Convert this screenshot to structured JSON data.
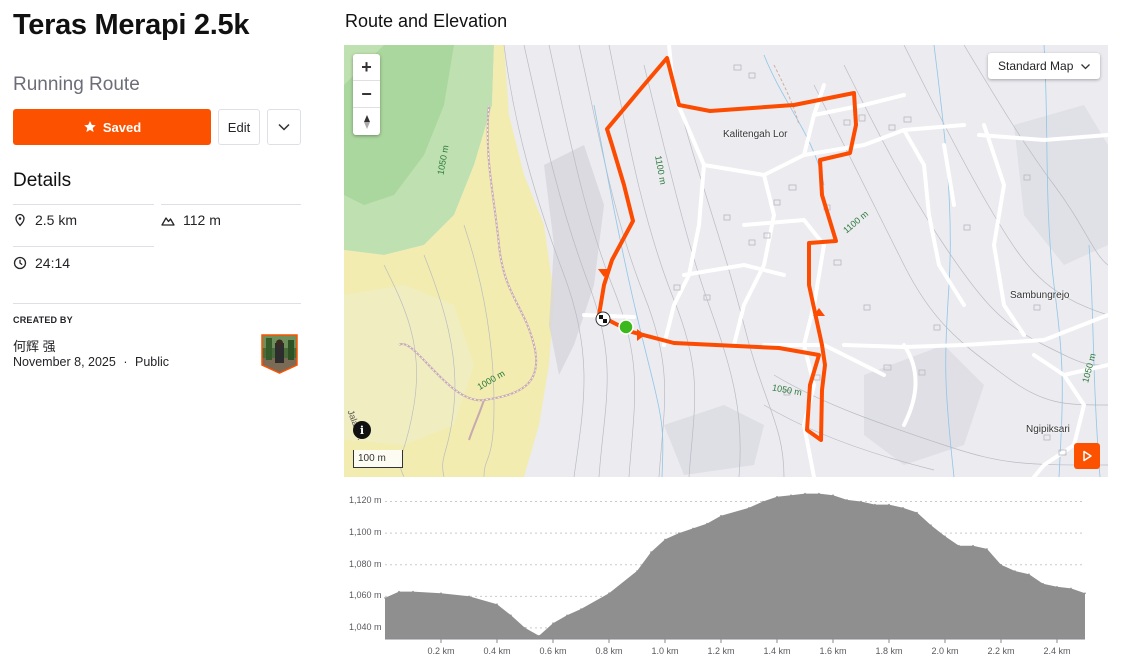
{
  "route": {
    "title": "Teras Merapi 2.5k",
    "type": "Running Route"
  },
  "actions": {
    "saved_label": "Saved",
    "edit_label": "Edit"
  },
  "details": {
    "heading": "Details",
    "distance": "2.5 km",
    "elevation_gain": "112 m",
    "moving_time": "24:14"
  },
  "creator": {
    "heading": "CREATED BY",
    "name": "何辉 强",
    "date": "November 8, 2025",
    "separator": "·",
    "visibility": "Public"
  },
  "map": {
    "section_title": "Route and Elevation",
    "style_selector": "Standard Map",
    "zoom_in": "+",
    "zoom_out": "−",
    "info": "i",
    "scale": "100 m",
    "places": {
      "kalitengah_lor": "Kalitengah Lor",
      "sambungrejo": "Sambungrejo",
      "ngipiksari": "Ngipiksari"
    },
    "contours": {
      "c1050_left": "1050 m",
      "c1100_top": "1100 m",
      "c1100_right": "1100 m",
      "c1000": "1000 m",
      "c1050_mid": "1050 m",
      "c1050_right": "1050 m"
    },
    "road": "Jalan ...",
    "route_color": "#fc4c02",
    "start_color": "#3cb81f"
  },
  "chart_data": {
    "type": "area",
    "xlabel": "",
    "ylabel": "",
    "x_unit": "km",
    "y_unit": "m",
    "xlim": [
      0,
      2.5
    ],
    "ylim": [
      1033,
      1126
    ],
    "x_ticks": [
      "0.2 km",
      "0.4 km",
      "0.6 km",
      "0.8 km",
      "1.0 km",
      "1.2 km",
      "1.4 km",
      "1.6 km",
      "1.8 km",
      "2.0 km",
      "2.2 km",
      "2.4 km"
    ],
    "y_ticks": [
      "1,120 m",
      "1,100 m",
      "1,080 m",
      "1,060 m",
      "1,040 m"
    ],
    "x": [
      0,
      0.05,
      0.1,
      0.2,
      0.3,
      0.4,
      0.45,
      0.5,
      0.55,
      0.6,
      0.65,
      0.7,
      0.8,
      0.9,
      0.95,
      1.0,
      1.05,
      1.1,
      1.15,
      1.2,
      1.3,
      1.35,
      1.4,
      1.45,
      1.5,
      1.55,
      1.6,
      1.65,
      1.7,
      1.75,
      1.8,
      1.85,
      1.9,
      1.95,
      2.0,
      2.05,
      2.1,
      2.15,
      2.2,
      2.25,
      2.3,
      2.35,
      2.4,
      2.45,
      2.5
    ],
    "y": [
      1059,
      1063,
      1063,
      1062,
      1060,
      1055,
      1048,
      1040,
      1035,
      1043,
      1048,
      1052,
      1062,
      1076,
      1088,
      1096,
      1100,
      1103,
      1106,
      1111,
      1116,
      1120,
      1123,
      1124,
      1125,
      1125,
      1124,
      1121,
      1120,
      1118,
      1118,
      1116,
      1113,
      1105,
      1098,
      1092,
      1092,
      1090,
      1080,
      1076,
      1074,
      1068,
      1066,
      1065,
      1062
    ],
    "area_color": "#8f8f8f",
    "grid": true
  }
}
